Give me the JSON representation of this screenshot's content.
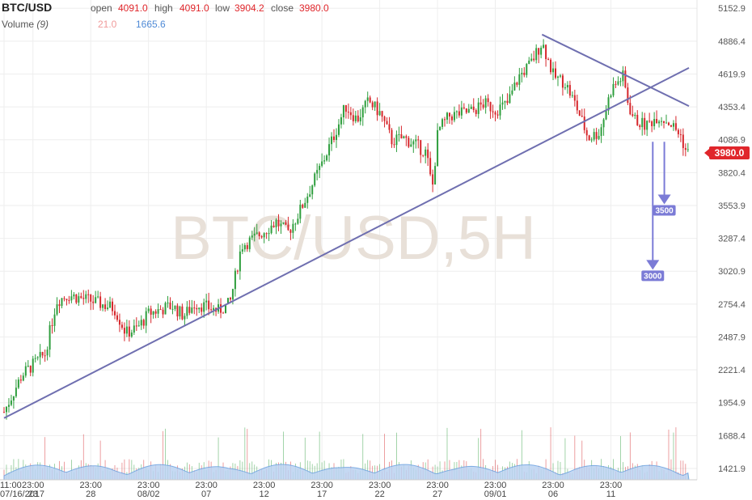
{
  "header": {
    "symbol": "BTC/USD",
    "open_label": "open",
    "open_value": "4091.0",
    "high_label": "high",
    "high_value": "4091.0",
    "low_label": "low",
    "low_value": "3904.2",
    "close_label": "close",
    "close_value": "3980.0",
    "volume_label": "Volume",
    "volume_period": "(9)",
    "volume_value_1": "21.0",
    "volume_value_2": "1665.6"
  },
  "watermark": "BTC/USD,5H",
  "colors": {
    "up": "#2e9e3d",
    "down": "#d6262b",
    "trendline": "#6f6fb0",
    "target": "#7b7bd6",
    "volume_fill": "#bcd3f2",
    "volume_line": "#6aa0e0",
    "price_badge": "#e0262b"
  },
  "chart_data": {
    "type": "candlestick",
    "y_axis": {
      "ticks": [
        5152.9,
        4886.4,
        4619.9,
        4353.4,
        4086.9,
        3820.4,
        3553.9,
        3287.4,
        3020.9,
        2754.4,
        2487.9,
        2221.4,
        1954.9,
        1688.4,
        1421.9
      ],
      "ylim": [
        1330,
        5220
      ]
    },
    "x_axis": {
      "ticks": [
        {
          "time": "11:00",
          "date": "07/16/2017"
        },
        {
          "time": "23:00",
          "date": "23"
        },
        {
          "time": "23:00",
          "date": "28"
        },
        {
          "time": "23:00",
          "date": "08/02"
        },
        {
          "time": "23:00",
          "date": "07"
        },
        {
          "time": "23:00",
          "date": "12"
        },
        {
          "time": "23:00",
          "date": "17"
        },
        {
          "time": "23:00",
          "date": "22"
        },
        {
          "time": "23:00",
          "date": "27"
        },
        {
          "time": "23:00",
          "date": "09/01"
        },
        {
          "time": "23:00",
          "date": "06"
        },
        {
          "time": "23:00",
          "date": "11"
        }
      ]
    },
    "price_path": [
      [
        "07/16 11:00",
        1880
      ],
      [
        "07/18",
        2180
      ],
      [
        "07/20",
        2350
      ],
      [
        "07/21",
        2780
      ],
      [
        "07/22",
        2830
      ],
      [
        "07/24",
        2780
      ],
      [
        "07/26",
        2720
      ],
      [
        "07/27",
        2520
      ],
      [
        "07/28",
        2560
      ],
      [
        "07/29",
        2680
      ],
      [
        "07/31",
        2740
      ],
      [
        "08/01",
        2660
      ],
      [
        "08/02",
        2760
      ],
      [
        "08/04",
        2700
      ],
      [
        "08/05",
        2760
      ],
      [
        "08/06",
        3230
      ],
      [
        "08/07",
        3280
      ],
      [
        "08/08",
        3350
      ],
      [
        "08/09",
        3420
      ],
      [
        "08/10",
        3330
      ],
      [
        "08/11",
        3500
      ],
      [
        "08/13",
        3900
      ],
      [
        "08/14",
        4120
      ],
      [
        "08/15",
        4360
      ],
      [
        "08/16",
        4250
      ],
      [
        "08/17",
        4400
      ],
      [
        "08/18",
        4300
      ],
      [
        "08/19",
        4080
      ],
      [
        "08/20",
        4100
      ],
      [
        "08/21",
        4050
      ],
      [
        "08/22",
        3980
      ],
      [
        "08/22 12:00",
        3680
      ],
      [
        "08/23",
        4160
      ],
      [
        "08/24",
        4280
      ],
      [
        "08/26",
        4320
      ],
      [
        "08/27",
        4380
      ],
      [
        "08/28",
        4330
      ],
      [
        "08/29",
        4380
      ],
      [
        "08/30",
        4600
      ],
      [
        "08/31",
        4700
      ],
      [
        "09/01",
        4880
      ],
      [
        "09/02",
        4600
      ],
      [
        "09/03",
        4550
      ],
      [
        "09/04",
        4350
      ],
      [
        "09/05",
        4100
      ],
      [
        "09/06",
        4150
      ],
      [
        "09/07",
        4500
      ],
      [
        "09/08",
        4600
      ],
      [
        "09/08 12:00",
        4360
      ],
      [
        "09/09",
        4250
      ],
      [
        "09/10",
        4200
      ],
      [
        "09/11",
        4280
      ],
      [
        "09/12",
        4230
      ],
      [
        "09/13",
        4120
      ],
      [
        "09/13 12:00",
        3980
      ]
    ],
    "current_price": 3980.0,
    "annotations": [
      {
        "type": "trendline",
        "from": [
          "07/16 11:00",
          1830
        ],
        "to": [
          "09/13 17:00",
          4670
        ]
      },
      {
        "type": "trendline",
        "from": [
          "09/01",
          4940
        ],
        "to": [
          "09/13 17:00",
          4360
        ]
      },
      {
        "type": "target",
        "label": "3500",
        "from": [
          "09/12",
          4070
        ],
        "to": [
          "09/12",
          3570
        ]
      },
      {
        "type": "target",
        "label": "3000",
        "from": [
          "09/11",
          4070
        ],
        "to": [
          "09/11",
          3040
        ]
      }
    ]
  }
}
